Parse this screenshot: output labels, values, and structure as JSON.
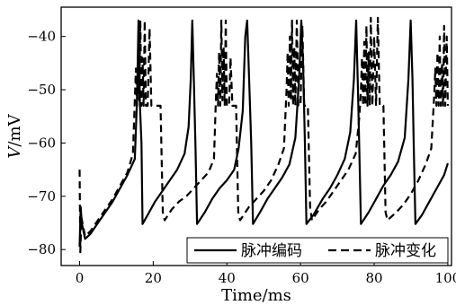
{
  "chart_data": {
    "type": "line",
    "xlabel": "Time/ms",
    "ylabel_italic": "V",
    "ylabel_unit": "/mV",
    "xlim": [
      -5,
      101
    ],
    "ylim": [
      -83,
      -34.5
    ],
    "xticks": [
      0,
      20,
      40,
      60,
      80,
      100
    ],
    "yticks": [
      -80,
      -70,
      -60,
      -50,
      -40
    ],
    "grid": false,
    "legend_position": "lower-right",
    "series": [
      {
        "name": "脉冲编码",
        "line_style": "solid",
        "color": "#000000",
        "points": [
          [
            0,
            -79.5
          ],
          [
            0.3,
            -72
          ],
          [
            0.6,
            -75
          ],
          [
            1.5,
            -78
          ],
          [
            3,
            -77
          ],
          [
            5,
            -75
          ],
          [
            7,
            -73
          ],
          [
            9,
            -71
          ],
          [
            11,
            -68.5
          ],
          [
            13,
            -66
          ],
          [
            15,
            -63
          ],
          [
            15.6,
            -52
          ],
          [
            16,
            -37
          ],
          [
            16.4,
            -53
          ],
          [
            16.8,
            -60
          ],
          [
            17.1,
            -75.2
          ],
          [
            18.5,
            -73.5
          ],
          [
            20.5,
            -71
          ],
          [
            22.5,
            -69
          ],
          [
            24.5,
            -67
          ],
          [
            26.5,
            -65
          ],
          [
            28.5,
            -62
          ],
          [
            29.6,
            -57
          ],
          [
            30.2,
            -48
          ],
          [
            30.6,
            -37
          ],
          [
            31.1,
            -50
          ],
          [
            31.5,
            -61
          ],
          [
            31.9,
            -75.2
          ],
          [
            34,
            -73
          ],
          [
            36,
            -70.5
          ],
          [
            38,
            -68.5
          ],
          [
            40,
            -67
          ],
          [
            42,
            -65
          ],
          [
            43.2,
            -61
          ],
          [
            44.3,
            -54
          ],
          [
            45,
            -40
          ],
          [
            45.5,
            -37
          ],
          [
            46,
            -47
          ],
          [
            46.6,
            -60
          ],
          [
            47.1,
            -75.2
          ],
          [
            49,
            -73
          ],
          [
            51,
            -70.5
          ],
          [
            53,
            -68.5
          ],
          [
            55,
            -66.5
          ],
          [
            57,
            -64
          ],
          [
            58.6,
            -59
          ],
          [
            59.6,
            -48
          ],
          [
            60.2,
            -37
          ],
          [
            60.7,
            -45
          ],
          [
            61.2,
            -60
          ],
          [
            61.6,
            -75.2
          ],
          [
            63.5,
            -73.5
          ],
          [
            66,
            -70.5
          ],
          [
            68,
            -68.5
          ],
          [
            70,
            -66
          ],
          [
            72,
            -63
          ],
          [
            73.5,
            -58
          ],
          [
            74.5,
            -48
          ],
          [
            75.1,
            -37
          ],
          [
            75.6,
            -50
          ],
          [
            76,
            -62
          ],
          [
            76.4,
            -75.2
          ],
          [
            78.5,
            -73
          ],
          [
            80.5,
            -70.5
          ],
          [
            82.5,
            -68
          ],
          [
            84.5,
            -66
          ],
          [
            86.5,
            -63.5
          ],
          [
            88.3,
            -59
          ],
          [
            89.3,
            -48
          ],
          [
            89.9,
            -37
          ],
          [
            90.4,
            -48
          ],
          [
            90.8,
            -62
          ],
          [
            91.2,
            -75.2
          ],
          [
            93,
            -73.5
          ],
          [
            95,
            -71
          ],
          [
            97,
            -68.5
          ],
          [
            99,
            -66
          ],
          [
            100,
            -63.8
          ]
        ]
      },
      {
        "name": "脉冲变化",
        "line_style": "dashed",
        "color": "#000000",
        "points": [
          [
            0,
            -65
          ],
          [
            0.2,
            -80.5
          ],
          [
            0.5,
            -74
          ],
          [
            1.5,
            -77.5
          ],
          [
            3,
            -76.5
          ],
          [
            5,
            -74.5
          ],
          [
            7,
            -72.5
          ],
          [
            9,
            -70.5
          ],
          [
            11,
            -68
          ],
          [
            13,
            -65.5
          ],
          [
            14.5,
            -62
          ],
          [
            15,
            -52
          ],
          [
            15.3,
            -46
          ],
          [
            15.6,
            -53
          ],
          [
            15.9,
            -43
          ],
          [
            16.2,
            -52
          ],
          [
            16.5,
            -37
          ],
          [
            16.8,
            -53
          ],
          [
            17.1,
            -44
          ],
          [
            17.4,
            -53
          ],
          [
            17.7,
            -37
          ],
          [
            18,
            -53
          ],
          [
            18.5,
            -53
          ],
          [
            19,
            -38.5
          ],
          [
            19.5,
            -53
          ],
          [
            22,
            -53
          ],
          [
            22.6,
            -73
          ],
          [
            23.1,
            -74.5
          ],
          [
            25,
            -72.5
          ],
          [
            27,
            -71
          ],
          [
            29,
            -70
          ],
          [
            31,
            -68.5
          ],
          [
            33,
            -67
          ],
          [
            35,
            -65.5
          ],
          [
            36.5,
            -63
          ],
          [
            37,
            -52
          ],
          [
            37.3,
            -47
          ],
          [
            37.6,
            -53
          ],
          [
            37.9,
            -43
          ],
          [
            38.2,
            -53
          ],
          [
            38.5,
            -37
          ],
          [
            38.8,
            -52
          ],
          [
            39.1,
            -42
          ],
          [
            39.4,
            -53
          ],
          [
            39.7,
            -37
          ],
          [
            40,
            -53
          ],
          [
            40.6,
            -53
          ],
          [
            41,
            -44
          ],
          [
            41.5,
            -53
          ],
          [
            42.5,
            -53
          ],
          [
            43.1,
            -73
          ],
          [
            43.6,
            -74.5
          ],
          [
            46,
            -72
          ],
          [
            48,
            -70.5
          ],
          [
            50,
            -69
          ],
          [
            52,
            -67
          ],
          [
            54,
            -64
          ],
          [
            55.5,
            -61
          ],
          [
            56.2,
            -50
          ],
          [
            56.5,
            -43
          ],
          [
            56.8,
            -53
          ],
          [
            57.1,
            -40
          ],
          [
            57.4,
            -52
          ],
          [
            57.7,
            -37
          ],
          [
            58,
            -53
          ],
          [
            58.3,
            -42
          ],
          [
            58.6,
            -53
          ],
          [
            59,
            -37
          ],
          [
            59.4,
            -53
          ],
          [
            60,
            -53
          ],
          [
            60.5,
            -38
          ],
          [
            61,
            -53
          ],
          [
            62,
            -53
          ],
          [
            62.6,
            -72
          ],
          [
            63.1,
            -74.5
          ],
          [
            65,
            -72.5
          ],
          [
            67,
            -71
          ],
          [
            69,
            -69
          ],
          [
            71,
            -67
          ],
          [
            73,
            -65
          ],
          [
            75,
            -62
          ],
          [
            76,
            -55
          ],
          [
            76.4,
            -50
          ],
          [
            76.7,
            -44
          ],
          [
            77,
            -53
          ],
          [
            77.3,
            -41
          ],
          [
            77.6,
            -53
          ],
          [
            77.9,
            -38
          ],
          [
            78.2,
            -53
          ],
          [
            78.5,
            -43
          ],
          [
            78.8,
            -53
          ],
          [
            79.1,
            -36.5
          ],
          [
            79.5,
            -53
          ],
          [
            80,
            -40
          ],
          [
            80.5,
            -53
          ],
          [
            81,
            -36.5
          ],
          [
            81.5,
            -53
          ],
          [
            82.5,
            -53
          ],
          [
            83.1,
            -73
          ],
          [
            83.6,
            -74.5
          ],
          [
            86,
            -73
          ],
          [
            88,
            -71.5
          ],
          [
            90,
            -69.5
          ],
          [
            92,
            -67
          ],
          [
            94,
            -64
          ],
          [
            95.5,
            -61
          ],
          [
            96.3,
            -51
          ],
          [
            96.6,
            -46
          ],
          [
            96.9,
            -53
          ],
          [
            97.2,
            -43
          ],
          [
            97.5,
            -53
          ],
          [
            97.8,
            -40
          ],
          [
            98.1,
            -53
          ],
          [
            98.4,
            -45
          ],
          [
            98.7,
            -53
          ],
          [
            99,
            -38
          ],
          [
            99.3,
            -53
          ],
          [
            99.7,
            -40
          ],
          [
            100,
            -53
          ]
        ]
      }
    ]
  }
}
